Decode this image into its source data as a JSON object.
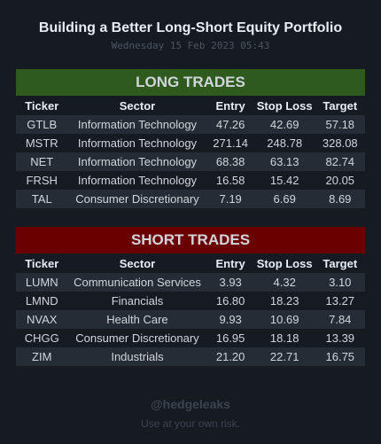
{
  "header": {
    "title": "Building a Better Long-Short Equity Portfolio",
    "date": "Wednesday 15 Feb 2023 05:43"
  },
  "columns": [
    "Ticker",
    "Sector",
    "Entry",
    "Stop Loss",
    "Target"
  ],
  "long": {
    "label": "LONG TRADES",
    "color": "#2e5a1e",
    "rows": [
      [
        "GTLB",
        "Information Technology",
        "47.26",
        "42.69",
        "57.18"
      ],
      [
        "MSTR",
        "Information Technology",
        "271.14",
        "248.78",
        "328.08"
      ],
      [
        "NET",
        "Information Technology",
        "68.38",
        "63.13",
        "82.74"
      ],
      [
        "FRSH",
        "Information Technology",
        "16.58",
        "15.42",
        "20.05"
      ],
      [
        "TAL",
        "Consumer Discretionary",
        "7.19",
        "6.69",
        "8.69"
      ]
    ]
  },
  "short": {
    "label": "SHORT TRADES",
    "color": "#6b0000",
    "rows": [
      [
        "LUMN",
        "Communication Services",
        "3.93",
        "4.32",
        "3.10"
      ],
      [
        "LMND",
        "Financials",
        "16.80",
        "18.23",
        "13.27"
      ],
      [
        "NVAX",
        "Health Care",
        "9.93",
        "10.69",
        "7.84"
      ],
      [
        "CHGG",
        "Consumer Discretionary",
        "16.95",
        "18.18",
        "13.39"
      ],
      [
        "ZIM",
        "Industrials",
        "21.20",
        "22.71",
        "16.75"
      ]
    ]
  },
  "footer": {
    "handle": "@hedgeleaks",
    "note": "Use at your own risk."
  }
}
